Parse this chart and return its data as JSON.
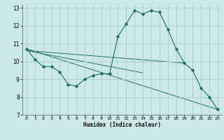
{
  "xlabel": "Humidex (Indice chaleur)",
  "bg_color": "#cce8e8",
  "grid_color": "#aacccc",
  "line_color": "#1a6e64",
  "xlim": [
    -0.5,
    23.5
  ],
  "ylim": [
    7,
    13.2
  ],
  "xticks": [
    0,
    1,
    2,
    3,
    4,
    5,
    6,
    7,
    8,
    9,
    10,
    11,
    12,
    13,
    14,
    15,
    16,
    17,
    18,
    19,
    20,
    21,
    22,
    23
  ],
  "yticks": [
    7,
    8,
    9,
    10,
    11,
    12,
    13
  ],
  "series": [
    {
      "x": [
        0,
        1,
        2,
        3,
        4,
        5,
        6,
        7,
        8,
        9,
        10,
        11,
        12,
        13,
        14,
        15,
        16,
        17,
        18,
        19,
        20,
        21,
        22,
        23
      ],
      "y": [
        10.7,
        10.1,
        9.7,
        9.7,
        9.4,
        8.7,
        8.6,
        9.0,
        9.2,
        9.3,
        9.3,
        11.4,
        12.1,
        12.85,
        12.65,
        12.85,
        12.75,
        11.8,
        10.7,
        9.9,
        9.5,
        8.5,
        8.0,
        7.3
      ],
      "markers": true
    },
    {
      "x": [
        0,
        23
      ],
      "y": [
        10.7,
        7.3
      ],
      "markers": false
    },
    {
      "x": [
        0,
        14
      ],
      "y": [
        10.6,
        9.35
      ],
      "markers": false
    },
    {
      "x": [
        0,
        19
      ],
      "y": [
        10.6,
        9.9
      ],
      "markers": false
    }
  ]
}
